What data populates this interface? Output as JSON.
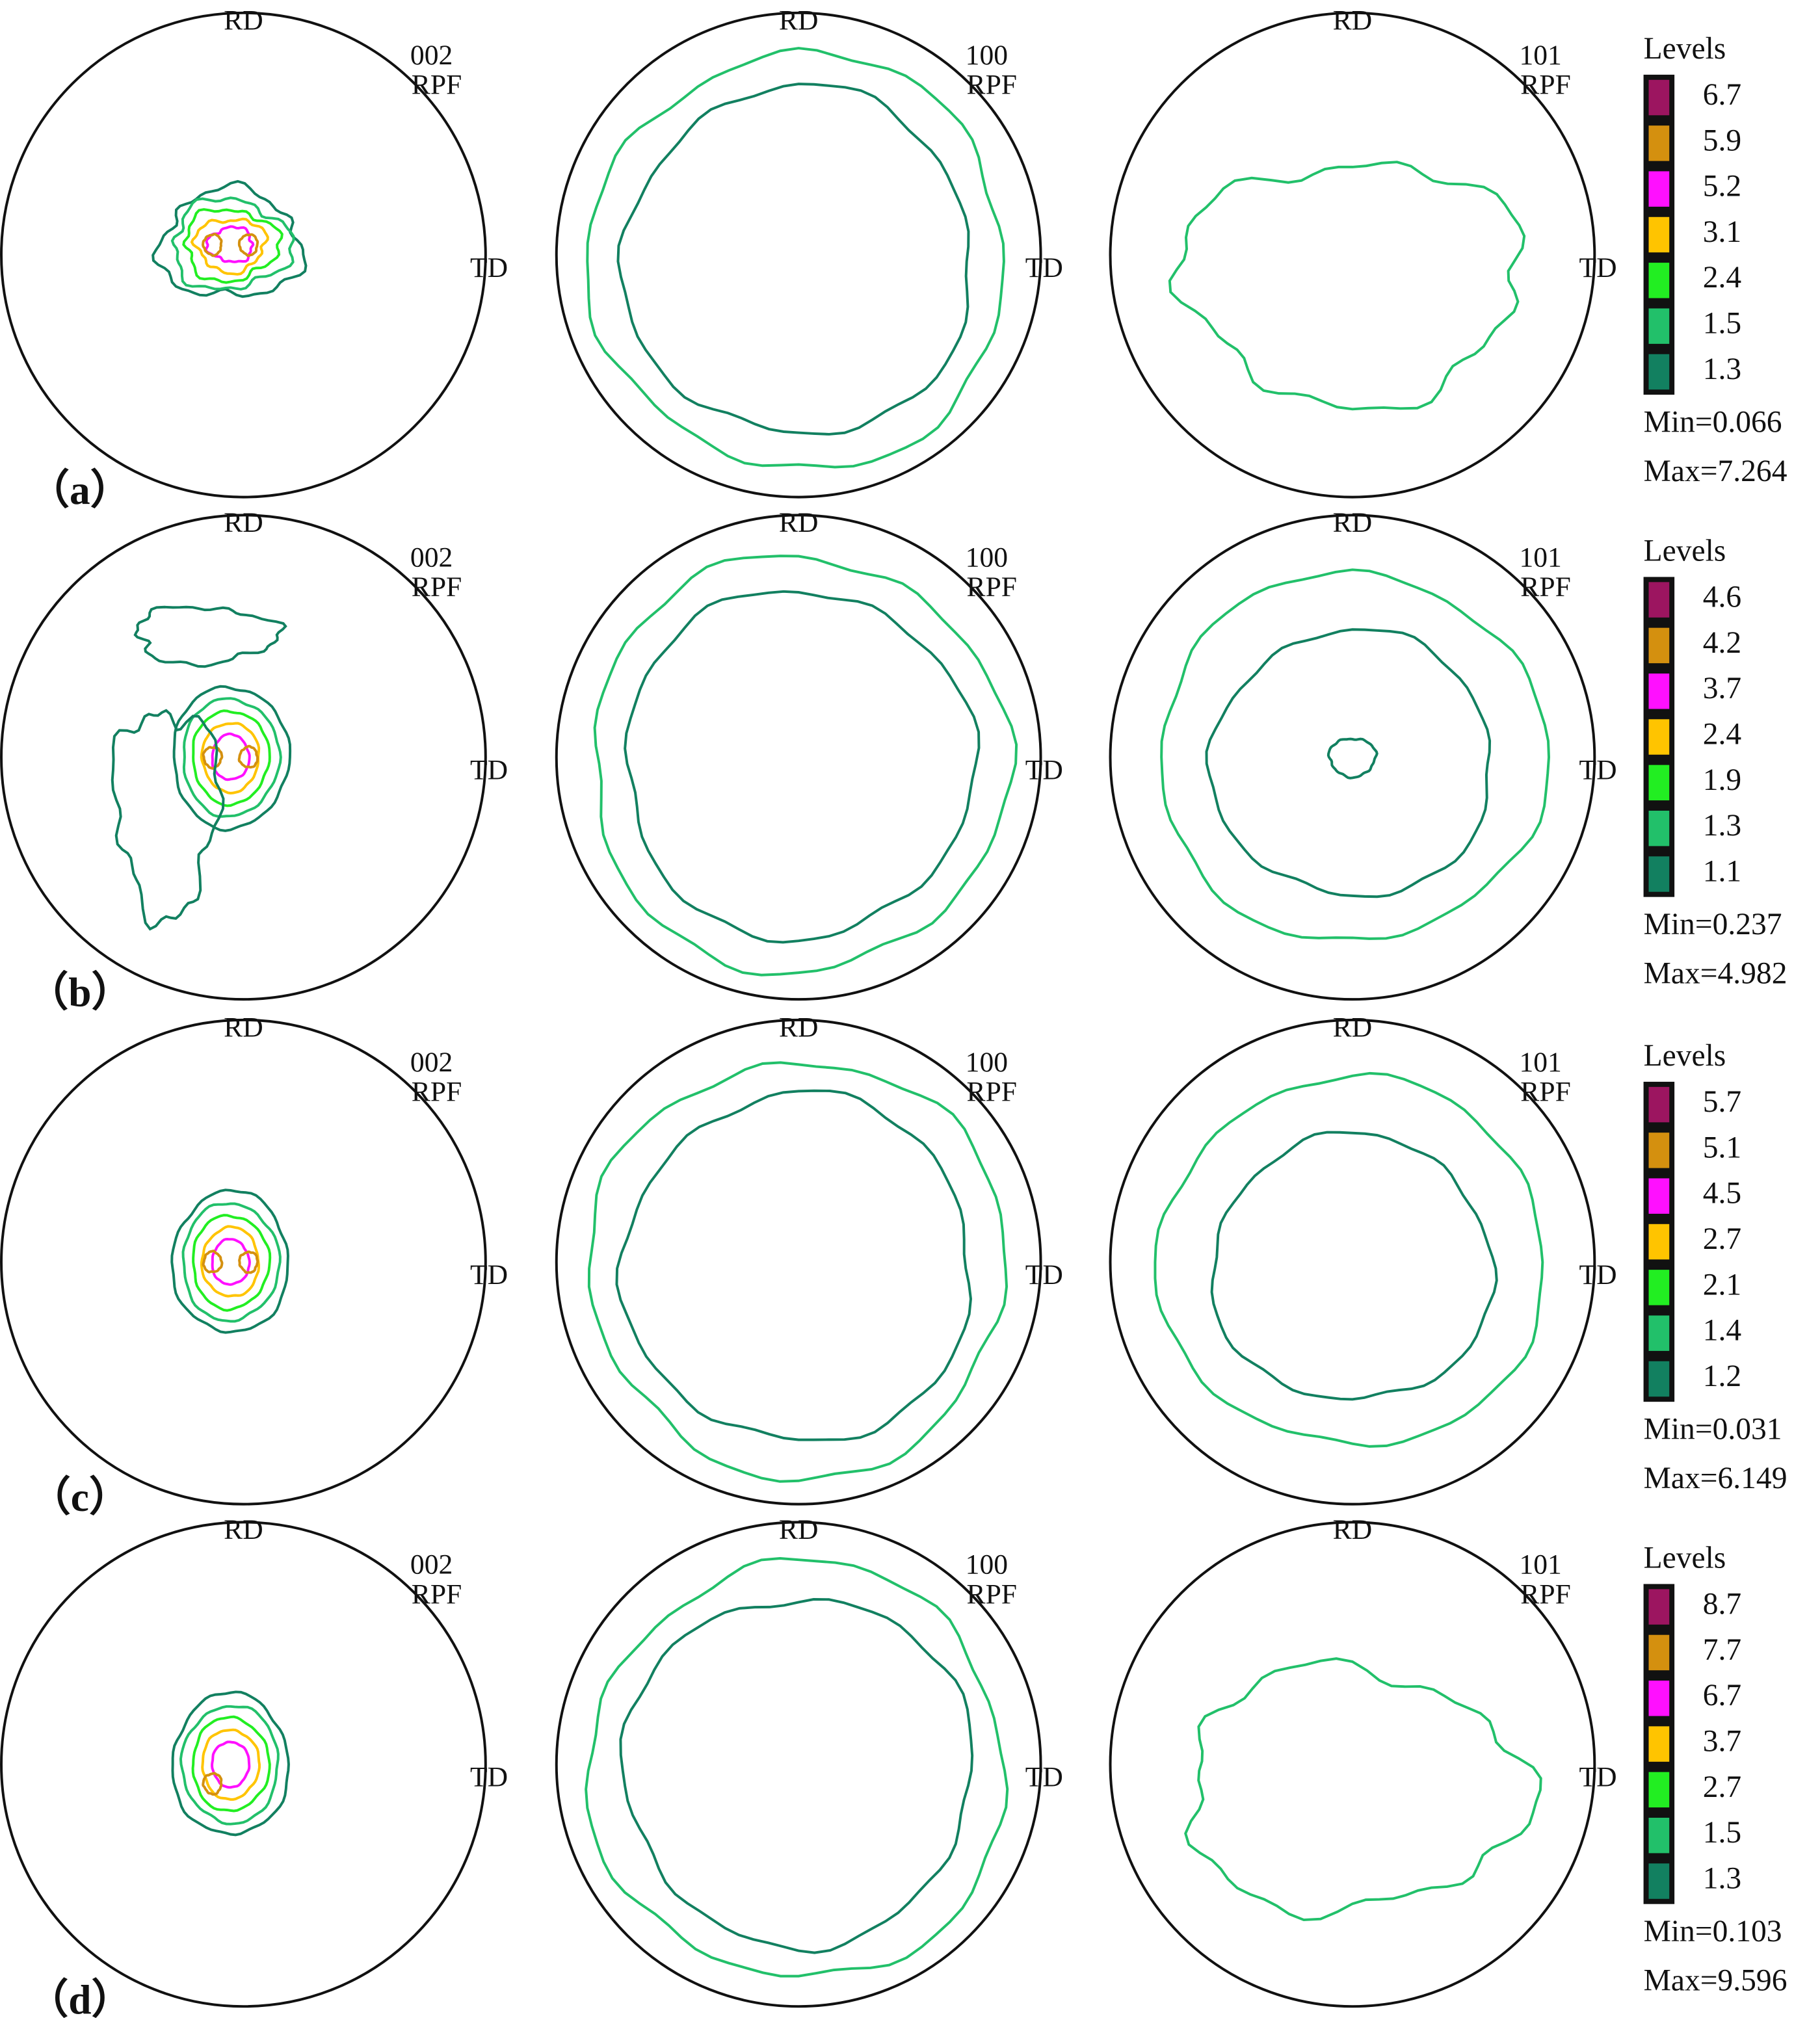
{
  "rows": [
    {
      "label": "（a）",
      "panels": [
        {
          "pole": "002",
          "projection": "RPF",
          "top": "RD",
          "right": "TD"
        },
        {
          "pole": "100",
          "projection": "RPF",
          "top": "RD",
          "right": "TD"
        },
        {
          "pole": "101",
          "projection": "RPF",
          "top": "RD",
          "right": "TD"
        }
      ],
      "legend": {
        "title": "Levels",
        "levels": [
          6.7,
          5.9,
          5.2,
          3.1,
          2.4,
          1.5,
          1.3
        ],
        "min": "Min=0.066",
        "max": "Max=7.264"
      }
    },
    {
      "label": "（b）",
      "panels": [
        {
          "pole": "002",
          "projection": "RPF",
          "top": "RD",
          "right": "TD"
        },
        {
          "pole": "100",
          "projection": "RPF",
          "top": "RD",
          "right": "TD"
        },
        {
          "pole": "101",
          "projection": "RPF",
          "top": "RD",
          "right": "TD"
        }
      ],
      "legend": {
        "title": "Levels",
        "levels": [
          4.6,
          4.2,
          3.7,
          2.4,
          1.9,
          1.3,
          1.1
        ],
        "min": "Min=0.237",
        "max": "Max=4.982"
      }
    },
    {
      "label": "（c）",
      "panels": [
        {
          "pole": "002",
          "projection": "RPF",
          "top": "RD",
          "right": "TD"
        },
        {
          "pole": "100",
          "projection": "RPF",
          "top": "RD",
          "right": "TD"
        },
        {
          "pole": "101",
          "projection": "RPF",
          "top": "RD",
          "right": "TD"
        }
      ],
      "legend": {
        "title": "Levels",
        "levels": [
          5.7,
          5.1,
          4.5,
          2.7,
          2.1,
          1.4,
          1.2
        ],
        "min": "Min=0.031",
        "max": "Max=6.149"
      }
    },
    {
      "label": "（d）",
      "panels": [
        {
          "pole": "002",
          "projection": "RPF",
          "top": "RD",
          "right": "TD"
        },
        {
          "pole": "100",
          "projection": "RPF",
          "top": "RD",
          "right": "TD"
        },
        {
          "pole": "101",
          "projection": "RPF",
          "top": "RD",
          "right": "TD"
        }
      ],
      "legend": {
        "title": "Levels",
        "levels": [
          8.7,
          7.7,
          6.7,
          3.7,
          2.7,
          1.5,
          1.3
        ],
        "min": "Min=0.103",
        "max": "Max=9.596"
      }
    }
  ],
  "level_colors": [
    "#9c1560",
    "#d4900f",
    "#ff10ff",
    "#ffc400",
    "#22ee22",
    "#22c06a",
    "#128060"
  ]
}
